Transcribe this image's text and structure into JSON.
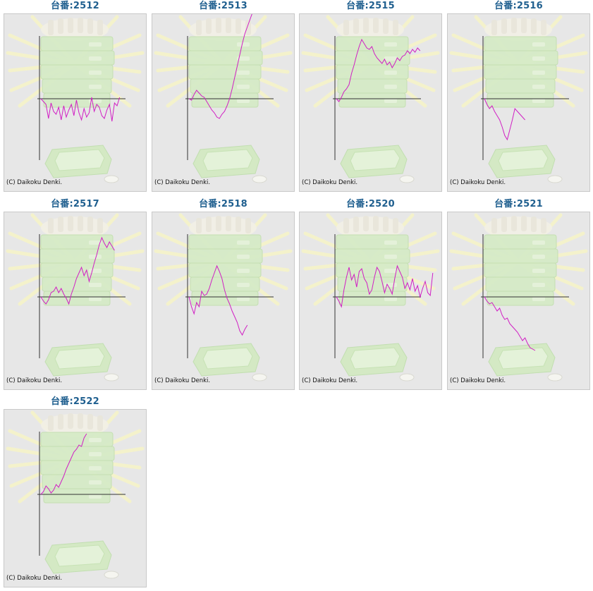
{
  "copyright": "(C) Daikoku Denki.",
  "chart_data": [
    {
      "type": "line",
      "title": "台番:2512",
      "color": "#d11fc4",
      "values": [
        0,
        -4,
        -8,
        -28,
        -6,
        -18,
        -22,
        -12,
        -30,
        -10,
        -26,
        -16,
        -8,
        -24,
        -2,
        -20,
        -30,
        -14,
        -26,
        -20,
        2,
        -18,
        -8,
        -12,
        -24,
        -28,
        -16,
        -8,
        -32,
        -6,
        -10,
        2
      ]
    },
    {
      "type": "line",
      "title": "台番:2513",
      "color": "#d11fc4",
      "values": [
        0,
        -2,
        6,
        12,
        8,
        4,
        2,
        -4,
        -10,
        -16,
        -20,
        -26,
        -28,
        -22,
        -18,
        -10,
        0,
        14,
        30,
        46,
        62,
        78,
        92,
        102,
        112,
        122,
        130,
        140,
        152,
        162,
        172
      ]
    },
    {
      "type": "line",
      "title": "台番:2515",
      "color": "#d11fc4",
      "values": [
        0,
        -4,
        2,
        10,
        14,
        20,
        36,
        48,
        62,
        74,
        84,
        78,
        72,
        70,
        74,
        64,
        58,
        54,
        50,
        56,
        48,
        52,
        44,
        50,
        58,
        54,
        60,
        62,
        68,
        64,
        70,
        66,
        72,
        68
      ]
    },
    {
      "type": "line",
      "title": "台番:2516",
      "color": "#d11fc4",
      "values": [
        0,
        -8,
        -14,
        -10,
        -18,
        -24,
        -30,
        -40,
        -52,
        -58,
        -44,
        -30,
        -14,
        -18,
        -22,
        -26,
        -30
      ]
    },
    {
      "type": "line",
      "title": "台番:2517",
      "color": "#d11fc4",
      "values": [
        0,
        -6,
        -10,
        -4,
        6,
        8,
        14,
        6,
        12,
        4,
        -2,
        -10,
        4,
        14,
        26,
        34,
        42,
        30,
        38,
        22,
        34,
        48,
        60,
        74,
        84,
        76,
        70,
        78,
        72,
        66
      ]
    },
    {
      "type": "line",
      "title": "台番:2518",
      "color": "#d11fc4",
      "values": [
        0,
        -14,
        -24,
        -8,
        -14,
        8,
        2,
        4,
        12,
        24,
        34,
        44,
        36,
        26,
        10,
        -2,
        -10,
        -20,
        -28,
        -36,
        -48,
        -54,
        -46,
        -40
      ]
    },
    {
      "type": "line",
      "title": "台番:2520",
      "color": "#d11fc4",
      "values": [
        0,
        -6,
        -14,
        10,
        28,
        42,
        24,
        32,
        14,
        36,
        40,
        26,
        20,
        4,
        10,
        28,
        42,
        36,
        22,
        6,
        18,
        12,
        4,
        26,
        44,
        36,
        28,
        12,
        20,
        10,
        26,
        8,
        16,
        0,
        12,
        22,
        6,
        2,
        34
      ]
    },
    {
      "type": "line",
      "title": "台番:2521",
      "color": "#d11fc4",
      "values": [
        0,
        -6,
        -10,
        -8,
        -14,
        -20,
        -16,
        -26,
        -32,
        -30,
        -38,
        -42,
        -46,
        -50,
        -56,
        -62,
        -58,
        -66,
        -72,
        -74,
        -76
      ]
    },
    {
      "type": "line",
      "title": "台番:2522",
      "color": "#d11fc4",
      "values": [
        0,
        4,
        12,
        8,
        2,
        6,
        14,
        10,
        18,
        26,
        36,
        44,
        52,
        60,
        64,
        70,
        68,
        80,
        86
      ]
    }
  ]
}
